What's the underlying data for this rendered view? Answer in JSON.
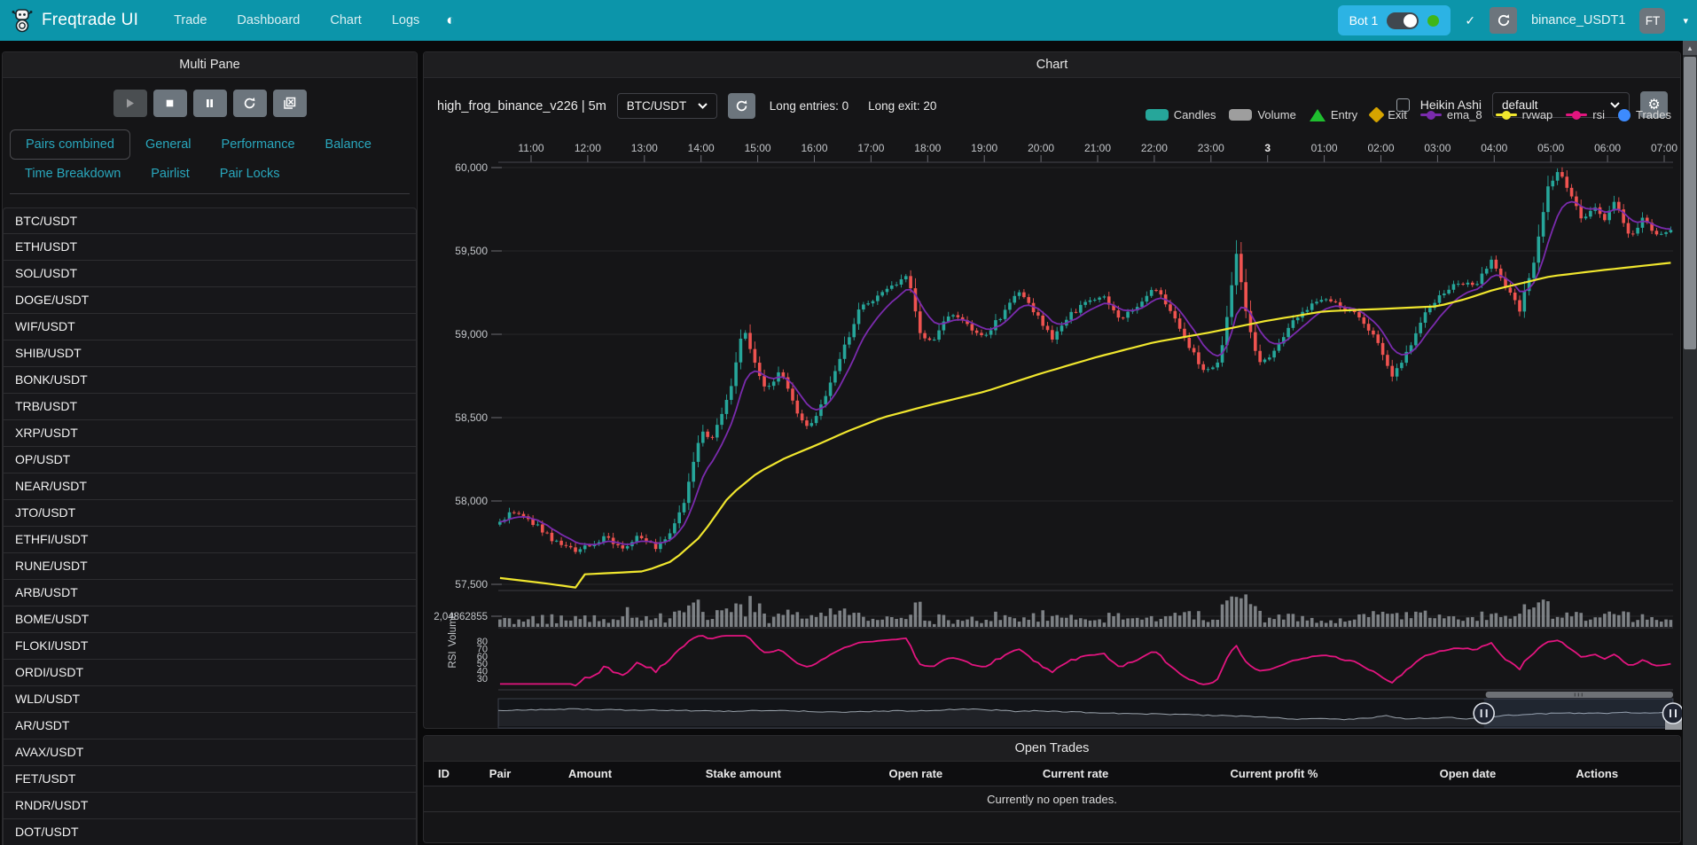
{
  "navbar": {
    "brand": "Freqtrade UI",
    "items": [
      "Trade",
      "Dashboard",
      "Chart",
      "Logs"
    ],
    "theme_icon": "◐",
    "bot_name": "Bot 1",
    "check_glyph": "✓",
    "account_label": "binance_USDT1",
    "avatar_label": "FT",
    "caret_glyph": "▾",
    "colors": {
      "bar": "#0c95aa",
      "bot_chip": "#2cb3e4",
      "online": "#3fb618"
    }
  },
  "multi_pane": {
    "title": "Multi Pane",
    "controls": [
      {
        "name": "play",
        "disabled": true
      },
      {
        "name": "stop",
        "disabled": false
      },
      {
        "name": "pause",
        "disabled": false
      },
      {
        "name": "refresh",
        "disabled": false
      },
      {
        "name": "clear-chart",
        "disabled": false
      }
    ],
    "tabs": [
      "Pairs combined",
      "General",
      "Performance",
      "Balance",
      "Time Breakdown",
      "Pairlist",
      "Pair Locks"
    ],
    "active_tab": "Pairs combined",
    "pairs": [
      "BTC/USDT",
      "ETH/USDT",
      "SOL/USDT",
      "DOGE/USDT",
      "WIF/USDT",
      "SHIB/USDT",
      "BONK/USDT",
      "TRB/USDT",
      "XRP/USDT",
      "OP/USDT",
      "NEAR/USDT",
      "JTO/USDT",
      "ETHFI/USDT",
      "RUNE/USDT",
      "ARB/USDT",
      "BOME/USDT",
      "FLOKI/USDT",
      "ORDI/USDT",
      "WLD/USDT",
      "AR/USDT",
      "AVAX/USDT",
      "FET/USDT",
      "RNDR/USDT",
      "DOT/USDT"
    ]
  },
  "chart_panel": {
    "title": "Chart",
    "strategy_label": "high_frog_binance_v226 | 5m",
    "pair_select_value": "BTC/USDT",
    "long_entries_label": "Long entries: 0",
    "long_exit_label": "Long exit: 20",
    "heikin_ashi_label": "Heikin Ashi",
    "plot_config_value": "default",
    "gear_glyph": "⚙",
    "legend": [
      {
        "label": "Candles",
        "shape": "rect",
        "color": "#26a69a"
      },
      {
        "label": "Volume",
        "shape": "rect",
        "color": "#9e9e9e"
      },
      {
        "label": "Entry",
        "shape": "triangle",
        "color": "#1fbf2f"
      },
      {
        "label": "Exit",
        "shape": "diamond",
        "color": "#d6a400"
      },
      {
        "label": "ema_8",
        "shape": "linedot",
        "color": "#7a2bad"
      },
      {
        "label": "rvwap",
        "shape": "linedot",
        "color": "#f0e62e"
      },
      {
        "label": "rsi",
        "shape": "linedot",
        "color": "#e2157f"
      },
      {
        "label": "Trades",
        "shape": "circle",
        "color": "#3d8bfd"
      }
    ]
  },
  "chart_data": {
    "type": "candlestick",
    "pair": "BTC/USDT",
    "timeframe": "5m",
    "x_axis_position": "top",
    "x_labels": [
      "11:00",
      "12:00",
      "13:00",
      "14:00",
      "15:00",
      "16:00",
      "17:00",
      "18:00",
      "19:00",
      "20:00",
      "21:00",
      "22:00",
      "23:00",
      "3",
      "01:00",
      "02:00",
      "03:00",
      "04:00",
      "05:00",
      "06:00",
      "07:00"
    ],
    "bold_x_label": "3",
    "y_ticks": [
      60000,
      59500,
      59000,
      58500,
      58000,
      57500
    ],
    "volume_axis_label": "2,04862855",
    "volume_pane_label": "Volume",
    "rsi_pane_label": "RSI",
    "rsi_ticks": [
      80,
      70,
      60,
      50,
      40,
      30
    ],
    "candle_interval_hours": 0.08333,
    "t_start": -0.55,
    "t_end": 20.16,
    "price_keypoints": [
      [
        -0.6,
        57850
      ],
      [
        -0.35,
        57940
      ],
      [
        0,
        57880
      ],
      [
        0.4,
        57760
      ],
      [
        0.8,
        57690
      ],
      [
        1.0,
        57730
      ],
      [
        1.3,
        57780
      ],
      [
        1.6,
        57710
      ],
      [
        1.9,
        57800
      ],
      [
        2.2,
        57720
      ],
      [
        2.45,
        57800
      ],
      [
        2.7,
        58000
      ],
      [
        3.0,
        58420
      ],
      [
        3.2,
        58370
      ],
      [
        3.5,
        58640
      ],
      [
        3.75,
        59060
      ],
      [
        3.95,
        58820
      ],
      [
        4.15,
        58660
      ],
      [
        4.4,
        58780
      ],
      [
        4.65,
        58560
      ],
      [
        4.9,
        58430
      ],
      [
        5.2,
        58620
      ],
      [
        5.5,
        58900
      ],
      [
        5.8,
        59150
      ],
      [
        6.1,
        59230
      ],
      [
        6.4,
        59300
      ],
      [
        6.65,
        59350
      ],
      [
        6.85,
        59010
      ],
      [
        7.1,
        58960
      ],
      [
        7.4,
        59130
      ],
      [
        7.7,
        59050
      ],
      [
        8.0,
        58990
      ],
      [
        8.3,
        59110
      ],
      [
        8.6,
        59260
      ],
      [
        8.9,
        59130
      ],
      [
        9.2,
        58970
      ],
      [
        9.5,
        59110
      ],
      [
        9.8,
        59190
      ],
      [
        10.1,
        59240
      ],
      [
        10.4,
        59090
      ],
      [
        10.7,
        59170
      ],
      [
        11.0,
        59290
      ],
      [
        11.3,
        59130
      ],
      [
        11.6,
        58930
      ],
      [
        11.9,
        58770
      ],
      [
        12.15,
        58830
      ],
      [
        12.45,
        59480
      ],
      [
        12.6,
        59150
      ],
      [
        12.85,
        58820
      ],
      [
        13.05,
        58860
      ],
      [
        13.4,
        59060
      ],
      [
        13.8,
        59190
      ],
      [
        14.1,
        59210
      ],
      [
        14.5,
        59130
      ],
      [
        14.9,
        58990
      ],
      [
        15.2,
        58740
      ],
      [
        15.5,
        58920
      ],
      [
        15.8,
        59130
      ],
      [
        16.1,
        59250
      ],
      [
        16.4,
        59310
      ],
      [
        16.7,
        59300
      ],
      [
        16.95,
        59450
      ],
      [
        17.15,
        59320
      ],
      [
        17.45,
        59150
      ],
      [
        17.7,
        59440
      ],
      [
        17.95,
        59880
      ],
      [
        18.15,
        59990
      ],
      [
        18.35,
        59840
      ],
      [
        18.55,
        59690
      ],
      [
        18.75,
        59760
      ],
      [
        18.95,
        59680
      ],
      [
        19.15,
        59800
      ],
      [
        19.4,
        59560
      ],
      [
        19.6,
        59700
      ],
      [
        19.85,
        59600
      ],
      [
        20.2,
        59640
      ]
    ],
    "rvwap_keypoints": [
      [
        -0.6,
        57540
      ],
      [
        0.2,
        57508
      ],
      [
        0.85,
        57478
      ],
      [
        0.95,
        57560
      ],
      [
        2.0,
        57578
      ],
      [
        2.5,
        57640
      ],
      [
        3.0,
        57790
      ],
      [
        3.5,
        58030
      ],
      [
        4.0,
        58170
      ],
      [
        4.5,
        58260
      ],
      [
        5.0,
        58330
      ],
      [
        5.6,
        58420
      ],
      [
        6.2,
        58500
      ],
      [
        7.0,
        58572
      ],
      [
        8.0,
        58655
      ],
      [
        9.0,
        58765
      ],
      [
        10.0,
        58865
      ],
      [
        11.0,
        58952
      ],
      [
        12.0,
        59012
      ],
      [
        13.0,
        59082
      ],
      [
        14.0,
        59138
      ],
      [
        15.0,
        59152
      ],
      [
        16.0,
        59168
      ],
      [
        16.5,
        59212
      ],
      [
        17.0,
        59268
      ],
      [
        18.0,
        59348
      ],
      [
        19.0,
        59388
      ],
      [
        20.2,
        59432
      ]
    ],
    "navigator_profile": [
      [
        0,
        0.38
      ],
      [
        0.03,
        0.36
      ],
      [
        0.06,
        0.32
      ],
      [
        0.09,
        0.35
      ],
      [
        0.13,
        0.37
      ],
      [
        0.17,
        0.4
      ],
      [
        0.2,
        0.42
      ],
      [
        0.24,
        0.38
      ],
      [
        0.27,
        0.44
      ],
      [
        0.3,
        0.46
      ],
      [
        0.33,
        0.42
      ],
      [
        0.36,
        0.4
      ],
      [
        0.38,
        0.36
      ],
      [
        0.4,
        0.33
      ],
      [
        0.42,
        0.36
      ],
      [
        0.44,
        0.42
      ],
      [
        0.46,
        0.4
      ],
      [
        0.49,
        0.46
      ],
      [
        0.52,
        0.52
      ],
      [
        0.55,
        0.55
      ],
      [
        0.58,
        0.58
      ],
      [
        0.61,
        0.62
      ],
      [
        0.64,
        0.66
      ],
      [
        0.66,
        0.72
      ],
      [
        0.68,
        0.8
      ],
      [
        0.7,
        0.78
      ],
      [
        0.72,
        0.8
      ],
      [
        0.74,
        0.76
      ],
      [
        0.755,
        0.6
      ],
      [
        0.77,
        0.78
      ],
      [
        0.79,
        0.74
      ],
      [
        0.81,
        0.72
      ],
      [
        0.825,
        0.78
      ],
      [
        0.84,
        0.72
      ],
      [
        0.86,
        0.62
      ],
      [
        0.88,
        0.55
      ],
      [
        0.9,
        0.52
      ],
      [
        0.92,
        0.5
      ],
      [
        0.94,
        0.52
      ],
      [
        0.96,
        0.48
      ],
      [
        0.98,
        0.5
      ],
      [
        1,
        0.46
      ]
    ],
    "navigator_window": [
      0.839,
      1.0
    ],
    "series_colors": {
      "up": "#26a69a",
      "down": "#ef5350",
      "ema_8": "#7a2bad",
      "rvwap": "#f0e62e",
      "rsi": "#e2157f",
      "volume": "#8f9499"
    }
  },
  "open_trades": {
    "title": "Open Trades",
    "columns": [
      "ID",
      "Pair",
      "Amount",
      "Stake amount",
      "Open rate",
      "Current rate",
      "Current profit %",
      "Open date",
      "Actions"
    ],
    "empty_message": "Currently no open trades."
  }
}
